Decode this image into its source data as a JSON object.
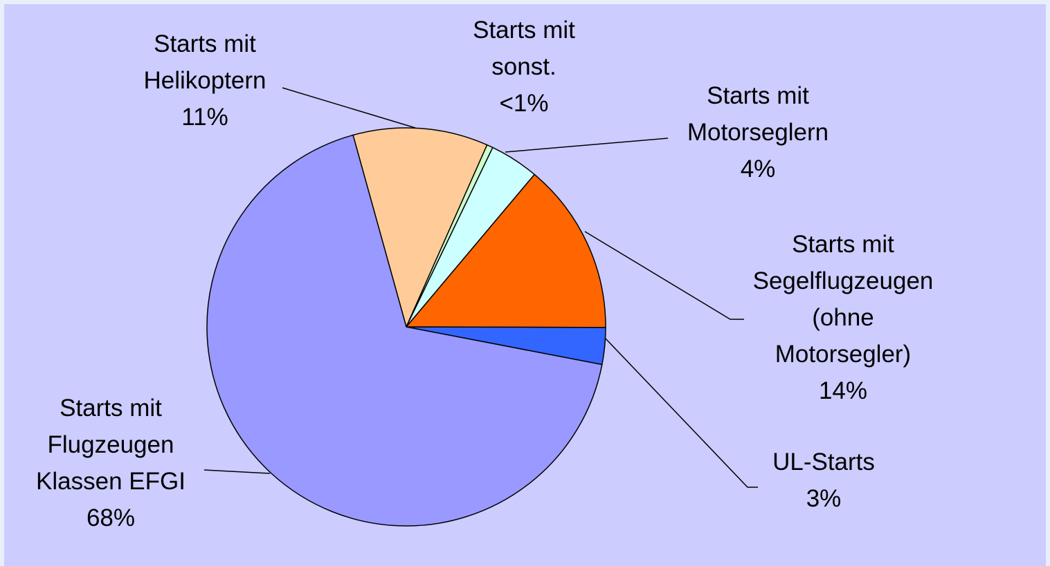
{
  "chart_data": {
    "type": "pie",
    "categories": [
      "Starts mit\nHelikoptern",
      "Starts mit\nsonst.",
      "Starts mit\nMotorseglern",
      "Starts mit\nSegelflugzeugen\n(ohne\nMotorsegler)",
      "UL-Starts",
      "Starts mit\nFlugzeugen\nKlassen EFGI"
    ],
    "values": [
      11,
      0.5,
      4,
      14,
      3,
      68
    ],
    "value_labels": [
      "11%",
      "<1%",
      "4%",
      "14%",
      "3%",
      "68%"
    ],
    "colors": [
      "#ffcc99",
      "#ccffcc",
      "#ccffff",
      "#ff6600",
      "#3366ff",
      "#9999ff"
    ]
  }
}
